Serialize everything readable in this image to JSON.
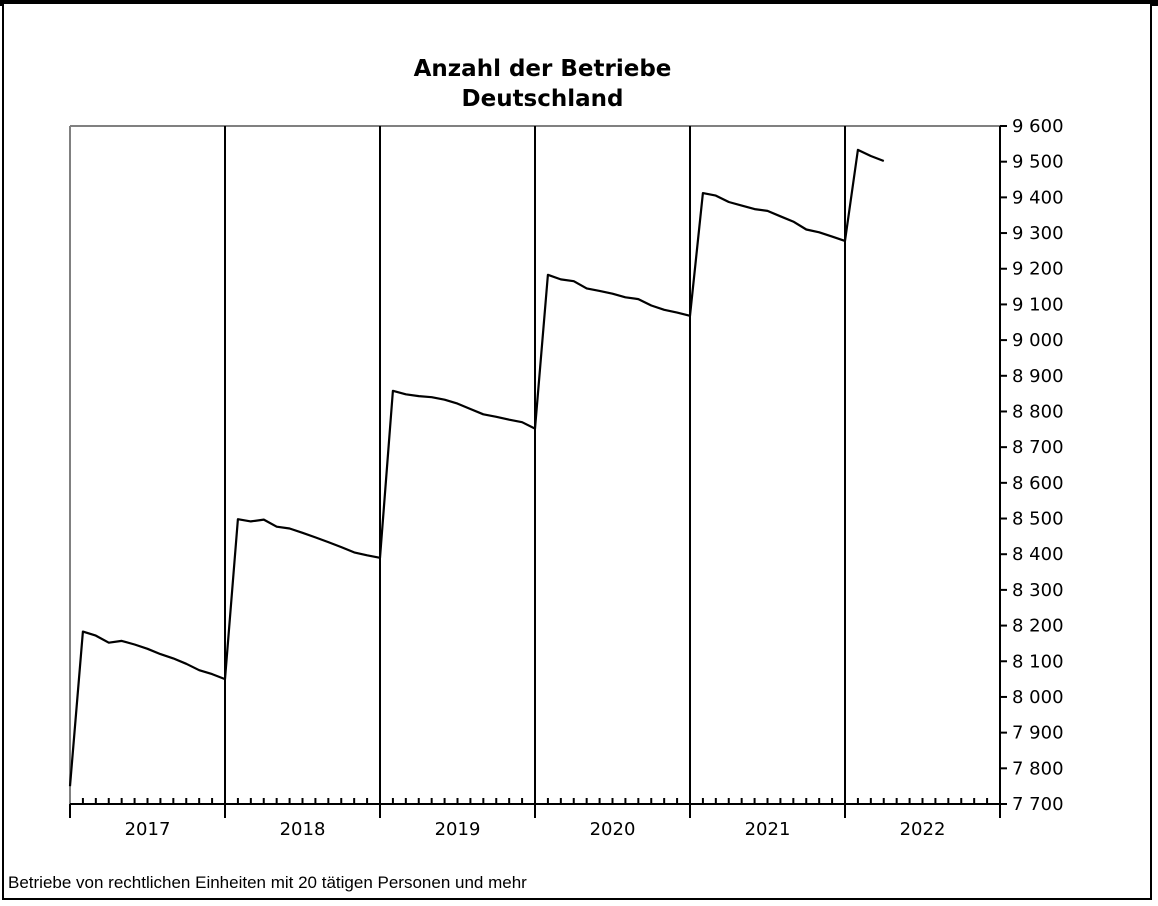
{
  "chart_data": {
    "type": "line",
    "title": "Anzahl der Betriebe",
    "subtitle": "Deutschland",
    "footnote": "Betriebe von rechtlichen Einheiten mit 20 tätigen Personen und mehr",
    "y_axis_position": "right",
    "ylim": [
      7700,
      9600
    ],
    "y_ticks": [
      "7 700",
      "7 800",
      "7 900",
      "8 000",
      "8 100",
      "8 200",
      "8 300",
      "8 400",
      "8 500",
      "8 600",
      "8 700",
      "8 800",
      "8 900",
      "9 000",
      "9 100",
      "9 200",
      "9 300",
      "9 400",
      "9 500",
      "9 600"
    ],
    "year_labels": [
      "2017",
      "2018",
      "2019",
      "2020",
      "2021",
      "2022"
    ],
    "months_per_year": 12,
    "series": [
      {
        "values": [
          7750,
          8183,
          8172,
          8152,
          8157,
          8147,
          8135,
          8120,
          8108,
          8093,
          8075,
          8064,
          8050,
          8498,
          8492,
          8497,
          8477,
          8472,
          8460,
          8447,
          8434,
          8420,
          8405,
          8397,
          8390,
          8858,
          8848,
          8843,
          8840,
          8833,
          8822,
          8807,
          8792,
          8785,
          8777,
          8770,
          8752,
          9183,
          9170,
          9165,
          9145,
          9138,
          9130,
          9120,
          9115,
          9097,
          9085,
          9077,
          9068,
          9412,
          9405,
          9387,
          9377,
          9367,
          9362,
          9347,
          9332,
          9310,
          9302,
          9290,
          9278,
          9533,
          9516,
          9502
        ]
      }
    ],
    "vertical_gridlines": "year boundaries",
    "grid": true
  }
}
